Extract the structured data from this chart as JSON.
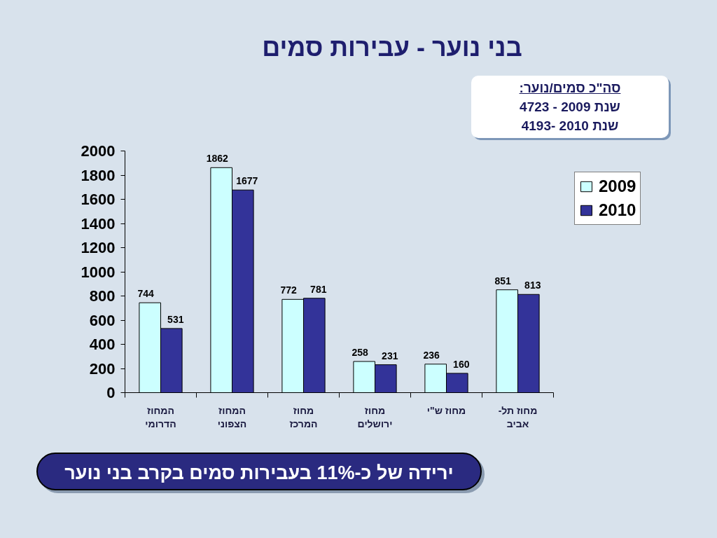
{
  "chart_data": {
    "type": "bar",
    "title": "בני נוער - עבירות סמים",
    "categories": [
      "המחוז\nהדרומי",
      "המחוז\nהצפוני",
      "מחוז\nהמרכז",
      "מחוז\nירושלים",
      "מחוז ש\"י",
      "מחוז תל-\nאביב"
    ],
    "series": [
      {
        "name": "2009",
        "color": "#ccffff",
        "values": [
          744,
          1862,
          772,
          258,
          236,
          851
        ]
      },
      {
        "name": "2010",
        "color": "#333399",
        "values": [
          531,
          1677,
          781,
          231,
          160,
          813
        ]
      }
    ],
    "ylim": [
      0,
      2000
    ],
    "yticks": [
      0,
      200,
      400,
      600,
      800,
      1000,
      1200,
      1400,
      1600,
      1800,
      2000
    ],
    "data_labels": true,
    "legend": "right",
    "grid": false,
    "annotations": [
      "סה\"כ סמים/נוער:",
      "שנת 2009 - 4723",
      "שנת 2010 -4193",
      "ירידה של כ-11% בעבירות סמים בקרב בני נוער"
    ]
  }
}
